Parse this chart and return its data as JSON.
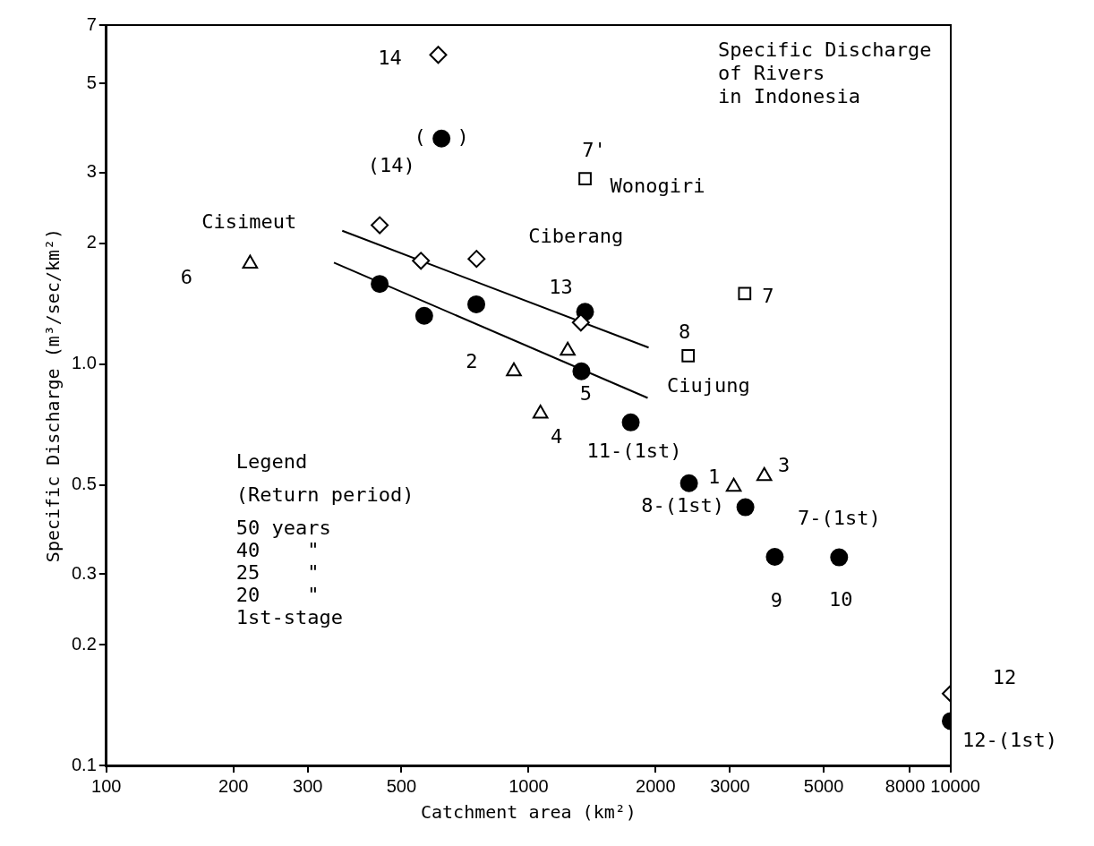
{
  "chart_data": {
    "type": "scatter",
    "title": "Specific Discharge\nof Rivers\nin Indonesia",
    "xlabel": "Catchment area (km²)",
    "ylabel": "Specific Discharge (m³/sec/km²)",
    "log": "xy",
    "xlim": [
      100,
      10000
    ],
    "xticks": [
      100,
      200,
      300,
      500,
      1000,
      2000,
      3000,
      5000,
      8000,
      10000
    ],
    "ylim": [
      0.1,
      7
    ],
    "yticks": [
      0.1,
      0.2,
      0.3,
      0.5,
      {
        "value": 1,
        "label": "1.0"
      },
      2,
      3,
      5,
      7
    ],
    "grid": false,
    "legend": false,
    "series": [
      {
        "color": "#000000",
        "marker": "diamond",
        "x": [
          611,
          444,
          556,
          753,
          1330,
          10000
        ],
        "values": [
          5.9,
          2.22,
          1.81,
          1.83,
          1.27,
          0.151
        ]
      },
      {
        "color": "#000000",
        "marker": "circle",
        "x": [
          622,
          1361,
          3830,
          5440
        ],
        "values": [
          3.65,
          1.35,
          0.331,
          0.33
        ]
      },
      {
        "color": "#000000",
        "marker": "triangle",
        "x": [
          219,
          923,
          1238,
          1067,
          3062,
          3617
        ],
        "values": [
          1.78,
          0.96,
          1.08,
          0.753,
          0.495,
          0.526
        ]
      },
      {
        "color": "#000000",
        "marker": "square",
        "x": [
          1361,
          3250,
          2388
        ],
        "values": [
          2.9,
          1.5,
          1.05
        ]
      },
      {
        "color": "#000000",
        "marker": "circle",
        "x": [
          444,
          566,
          752,
          1334,
          1746,
          2399,
          3263,
          10000
        ],
        "values": [
          1.585,
          1.32,
          1.41,
          0.96,
          0.716,
          0.505,
          0.44,
          0.129
        ]
      },
      {
        "type": "line",
        "color": "#000000",
        "marker": "none",
        "x": [
          362,
          1925
        ],
        "values": [
          2.15,
          1.1
        ]
      },
      {
        "type": "line",
        "color": "#000000",
        "marker": "none",
        "x": [
          346,
          1915
        ],
        "values": [
          1.79,
          0.824
        ]
      }
    ],
    "annotations": [
      {
        "text": "14",
        "x": 611,
        "y": 5.9
      },
      {
        "text": "(14)",
        "x": 622,
        "y": 3.65
      },
      {
        "text": "(",
        "x": 622,
        "y": 3.65
      },
      {
        "text": ")",
        "x": 622,
        "y": 3.65
      },
      {
        "text": "Cisimeut",
        "x": 219,
        "y": 1.78
      },
      {
        "text": "6",
        "x": 219,
        "y": 1.78
      },
      {
        "text": "13",
        "x": 1361,
        "y": 1.35
      },
      {
        "text": "2",
        "x": 923,
        "y": 0.96
      },
      {
        "text": "7'",
        "x": 1361,
        "y": 2.9
      },
      {
        "text": "Wonogiri",
        "x": 1361,
        "y": 2.9
      },
      {
        "text": "7",
        "x": 3250,
        "y": 1.5
      },
      {
        "text": "8",
        "x": 2388,
        "y": 1.05
      },
      {
        "text": "Ciujung",
        "x": 1915,
        "y": 0.824
      },
      {
        "text": "5",
        "x": 1334,
        "y": 0.96
      },
      {
        "text": "4",
        "x": 1067,
        "y": 0.753
      },
      {
        "text": "11-(1st)",
        "x": 1746,
        "y": 0.716
      },
      {
        "text": "1",
        "x": 2399,
        "y": 0.505
      },
      {
        "text": "3",
        "x": 3617,
        "y": 0.526
      },
      {
        "text": "8-(1st)",
        "x": 3263,
        "y": 0.44
      },
      {
        "text": "7-(1st)",
        "x": 5440,
        "y": 0.33
      },
      {
        "text": "9",
        "x": 3830,
        "y": 0.331
      },
      {
        "text": "10",
        "x": 5440,
        "y": 0.33
      },
      {
        "text": "12",
        "x": 10000,
        "y": 0.151
      },
      {
        "text": "12-(1st)",
        "x": 10000,
        "y": 0.129
      },
      "Ciberang",
      "Legend",
      "(Return period)",
      "50 years\n40    \"\n25    \"\n20    \"\n1st-stage"
    ]
  }
}
